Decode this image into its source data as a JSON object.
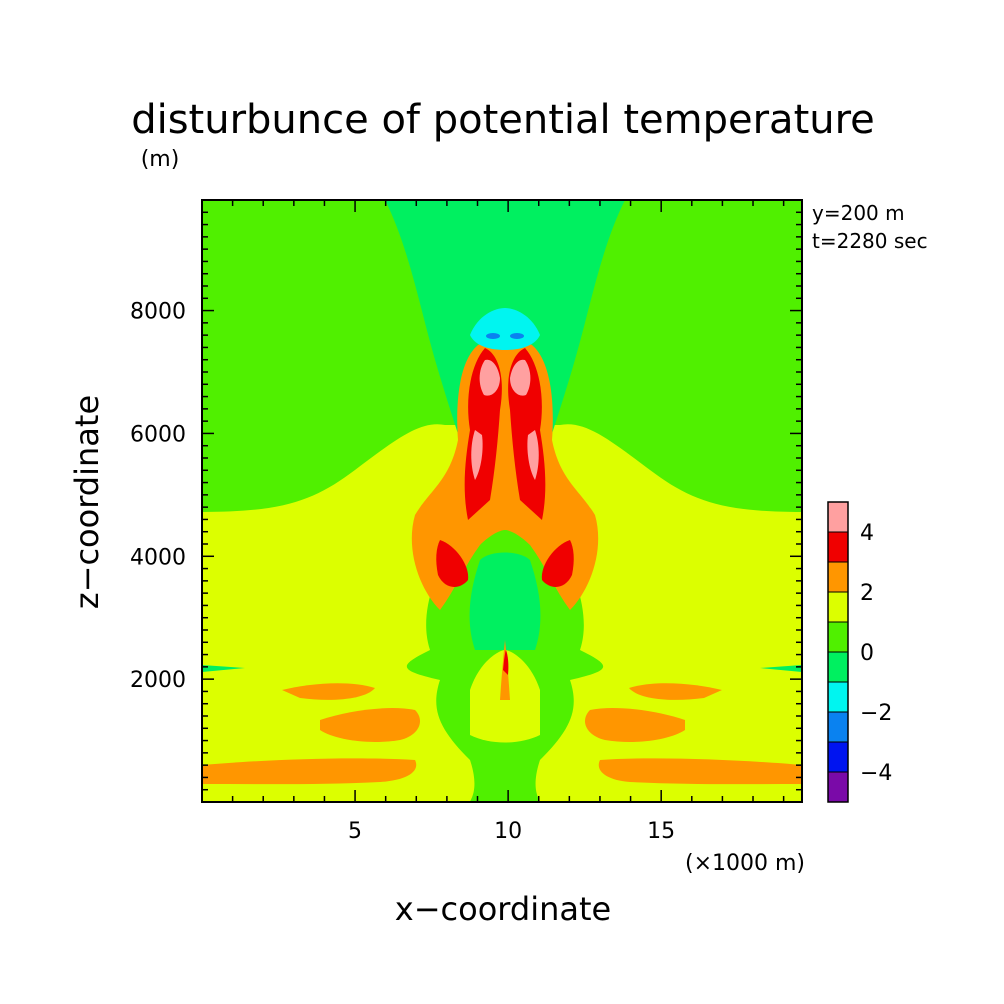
{
  "chart_data": {
    "type": "heatmap",
    "subtype": "filled-contour",
    "title": "disturbunce of potential temperature",
    "ylabel_unit": "(m)",
    "xlabel": "x−coordinate",
    "ylabel": "z−coordinate",
    "xlabel_unit": "(×1000 m)",
    "annotations": [
      "y=200 m",
      "t=2280 sec"
    ],
    "x_range": [
      0,
      19.6
    ],
    "y_range": [
      0,
      9800
    ],
    "x_ticks": [
      {
        "value": 5,
        "label": "5"
      },
      {
        "value": 10,
        "label": "10"
      },
      {
        "value": 15,
        "label": "15"
      }
    ],
    "y_ticks": [
      {
        "value": 2000,
        "label": "2000"
      },
      {
        "value": 4000,
        "label": "4000"
      },
      {
        "value": 6000,
        "label": "6000"
      },
      {
        "value": 8000,
        "label": "8000"
      }
    ],
    "colorbar": {
      "levels": [
        {
          "from": -5,
          "to": -4,
          "color": "#7a0aa8"
        },
        {
          "from": -4,
          "to": -3,
          "color": "#0014f0"
        },
        {
          "from": -3,
          "to": -2,
          "color": "#0a82f0"
        },
        {
          "from": -2,
          "to": -1,
          "color": "#00f5f0"
        },
        {
          "from": -1,
          "to": 0,
          "color": "#00f060"
        },
        {
          "from": 0,
          "to": 1,
          "color": "#50f000"
        },
        {
          "from": 1,
          "to": 2,
          "color": "#dcff00"
        },
        {
          "from": 2,
          "to": 3,
          "color": "#ff9600"
        },
        {
          "from": 3,
          "to": 4,
          "color": "#f00000"
        },
        {
          "from": 4,
          "to": 5,
          "color": "#ffa0a0"
        }
      ],
      "tick_labels": [
        {
          "value": -4,
          "label": "−4"
        },
        {
          "value": -2,
          "label": "−2"
        },
        {
          "value": 0,
          "label": "0"
        },
        {
          "value": 2,
          "label": "2"
        },
        {
          "value": 4,
          "label": "4"
        }
      ]
    },
    "grid": false,
    "legend": "colorbar-right"
  }
}
